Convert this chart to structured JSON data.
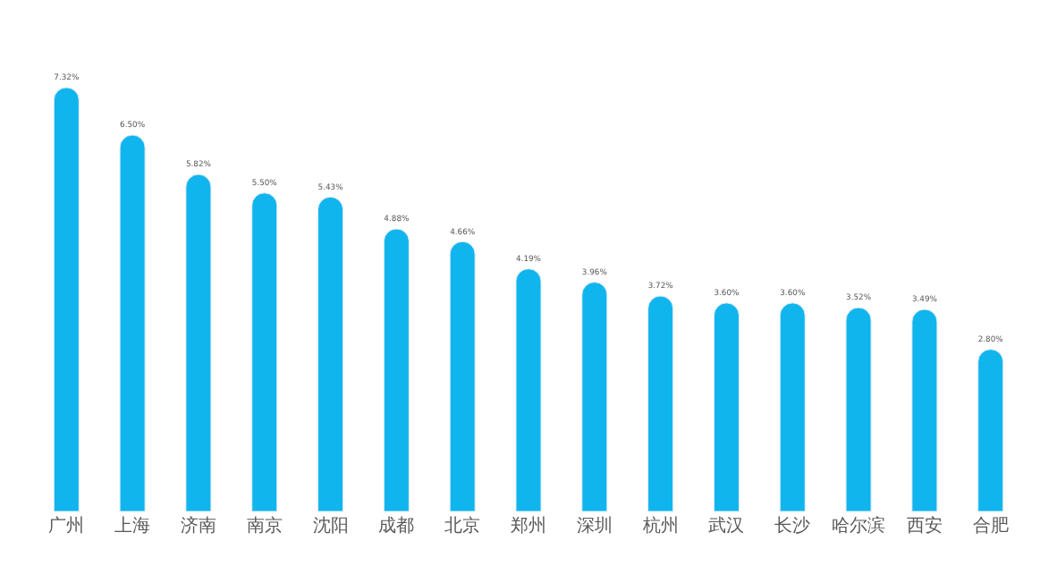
{
  "chart_data": {
    "type": "bar",
    "categories": [
      "广州",
      "上海",
      "济南",
      "南京",
      "沈阳",
      "成都",
      "北京",
      "郑州",
      "深圳",
      "杭州",
      "武汉",
      "长沙",
      "哈尔滨",
      "西安",
      "合肥"
    ],
    "values": [
      7.32,
      6.5,
      5.82,
      5.5,
      5.43,
      4.88,
      4.66,
      4.19,
      3.96,
      3.72,
      3.6,
      3.6,
      3.52,
      3.49,
      2.8
    ],
    "value_labels": [
      "7.32%",
      "6.50%",
      "5.82%",
      "5.50%",
      "5.43%",
      "4.88%",
      "4.66%",
      "4.19%",
      "3.96%",
      "3.72%",
      "3.60%",
      "3.60%",
      "3.52%",
      "3.49%",
      "2.80%"
    ],
    "color": "#10b5ee"
  }
}
